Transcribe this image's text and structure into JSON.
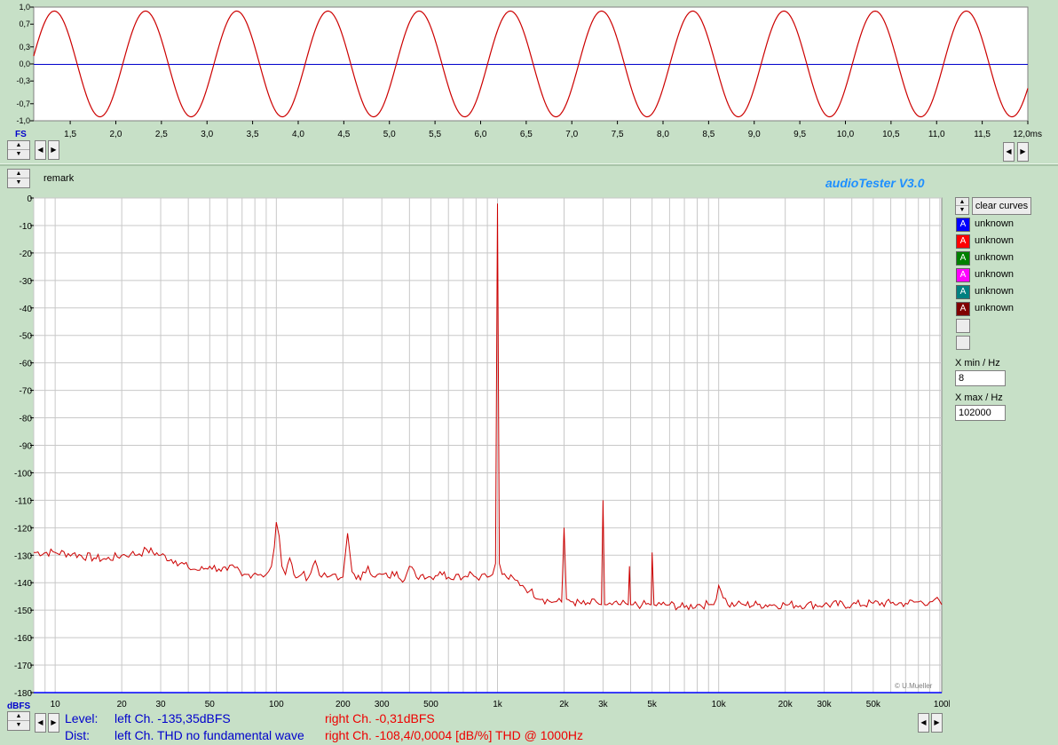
{
  "app": {
    "title": "audioTester  V3.0",
    "copyright": "© U.Mueller"
  },
  "colors": {
    "red": "#cc0000",
    "blue": "#0000ff",
    "bg": "#c7e0c7",
    "accent": "#1e8fff"
  },
  "wave": {
    "y_ticks": [
      "1,0",
      "0,7",
      "0,3",
      "0,0",
      "-0,3",
      "-0,7",
      "-1,0"
    ],
    "x_ticks": [
      "1,5",
      "2,0",
      "2,5",
      "3,0",
      "3,5",
      "4,0",
      "4,5",
      "5,0",
      "5,5",
      "6,0",
      "6,5",
      "7,0",
      "7,5",
      "8,0",
      "8,5",
      "9,0",
      "9,5",
      "10,0",
      "10,5",
      "11,0",
      "11,5",
      "12,0ms"
    ],
    "fs_label": "FS"
  },
  "remark_label": "remark",
  "controls": {
    "clear_curves": "clear curves",
    "xmin_label": "X min / Hz",
    "xmin_value": "8",
    "xmax_label": "X max / Hz",
    "xmax_value": "102000"
  },
  "legend": [
    {
      "swatch": "A",
      "color": "#0000ff",
      "label": "unknown"
    },
    {
      "swatch": "A",
      "color": "#ff0000",
      "label": "unknown"
    },
    {
      "swatch": "A",
      "color": "#008000",
      "label": "unknown"
    },
    {
      "swatch": "A",
      "color": "#ff00ff",
      "label": "unknown"
    },
    {
      "swatch": "A",
      "color": "#008080",
      "label": "unknown"
    },
    {
      "swatch": "A",
      "color": "#800000",
      "label": "unknown"
    }
  ],
  "status": {
    "level_label": "Level:",
    "dist_label": "Dist:",
    "level_left": "left Ch. -135,35dBFS",
    "level_right": "right Ch. -0,31dBFS",
    "dist_left": "left Ch. THD no fundamental wave",
    "dist_right": "right Ch. -108,4/0,0004 [dB/%] THD @ 1000Hz"
  },
  "chart_data": [
    {
      "type": "line",
      "xlabel": "ms",
      "ylabel": "FS",
      "xlim": [
        1.1,
        12.0
      ],
      "ylim": [
        -1.0,
        1.0
      ],
      "y_ticks": [
        "1,0",
        "0,7",
        "0,3",
        "0,0",
        "-0,3",
        "-0,7",
        "-1,0"
      ],
      "series": [
        {
          "frequency_hz": 1000,
          "amplitude": 0.93,
          "color": "#cc0000"
        }
      ],
      "grid": false
    },
    {
      "type": "line",
      "xlabel": "kHz",
      "ylabel": "dBFS",
      "xscale": "log",
      "xlim": [
        8,
        102000
      ],
      "ylim": [
        -180,
        0
      ],
      "grid": true,
      "y_ticks": [
        "0",
        "-10",
        "-20",
        "-30",
        "-40",
        "-50",
        "-60",
        "-70",
        "-80",
        "-90",
        "-100",
        "-110",
        "-120",
        "-130",
        "-140",
        "-150",
        "-160",
        "-170",
        "-180"
      ],
      "x_ticks": [
        "10",
        "20",
        "30",
        "50",
        "100",
        "200",
        "300",
        "500",
        "1k",
        "2k",
        "3k",
        "5k",
        "10k",
        "20k",
        "30k",
        "50k",
        "100kHz"
      ],
      "series": [
        {
          "color": "#cc0000",
          "x": [
            8,
            10,
            12,
            15,
            17,
            20,
            22,
            24,
            26,
            30,
            35,
            40,
            45,
            50,
            55,
            60,
            65,
            70,
            75,
            80,
            85,
            90,
            95,
            98,
            100,
            103,
            106,
            110,
            115,
            120,
            125,
            130,
            140,
            150,
            160,
            170,
            180,
            190,
            200,
            210,
            220,
            240,
            260,
            280,
            300,
            320,
            350,
            380,
            400,
            430,
            460,
            500,
            550,
            600,
            650,
            700,
            750,
            800,
            850,
            900,
            950,
            980,
            1000,
            1020,
            1050,
            1100,
            1200,
            1300,
            1400,
            1600,
            1800,
            1950,
            2000,
            2050,
            2200,
            2500,
            2800,
            2950,
            3000,
            3050,
            3300,
            3600,
            3900,
            3950,
            4000,
            4100,
            4500,
            4900,
            4950,
            5000,
            5100,
            5500,
            6000,
            7000,
            8000,
            9000,
            9500,
            10000,
            11000,
            12000,
            13000,
            15000,
            17000,
            20000,
            25000,
            30000,
            40000,
            50000,
            60000,
            70000,
            80000,
            90000,
            95000,
            102000
          ],
          "y": [
            -129,
            -129,
            -129.5,
            -131,
            -131.5,
            -130,
            -129.5,
            -129.5,
            -128,
            -130,
            -132,
            -134.5,
            -135.5,
            -134,
            -135,
            -135.5,
            -134.5,
            -137.5,
            -137,
            -136.5,
            -137,
            -137,
            -134,
            -127,
            -118,
            -123,
            -134,
            -137,
            -131,
            -137,
            -138,
            -137,
            -138,
            -132,
            -138,
            -138,
            -137,
            -139,
            -138,
            -122,
            -136,
            -139,
            -134,
            -138,
            -137,
            -138,
            -136,
            -139,
            -134,
            -138,
            -137,
            -138,
            -136,
            -138,
            -137,
            -138,
            -136,
            -138,
            -137,
            -138,
            -137,
            -133,
            -2,
            -133,
            -137,
            -138,
            -139,
            -141,
            -143,
            -146,
            -147,
            -147,
            -120,
            -146,
            -147,
            -148,
            -147,
            -148,
            -110,
            -148,
            -148,
            -148,
            -148,
            -134,
            -148,
            -148,
            -148,
            -148,
            -148,
            -129,
            -148,
            -148,
            -148,
            -149,
            -148,
            -148,
            -148,
            -141,
            -148,
            -148,
            -148,
            -148,
            -148,
            -148,
            -148,
            -148,
            -148,
            -147.5,
            -147.5,
            -147.5,
            -147,
            -147,
            -146,
            -148
          ]
        }
      ]
    }
  ]
}
